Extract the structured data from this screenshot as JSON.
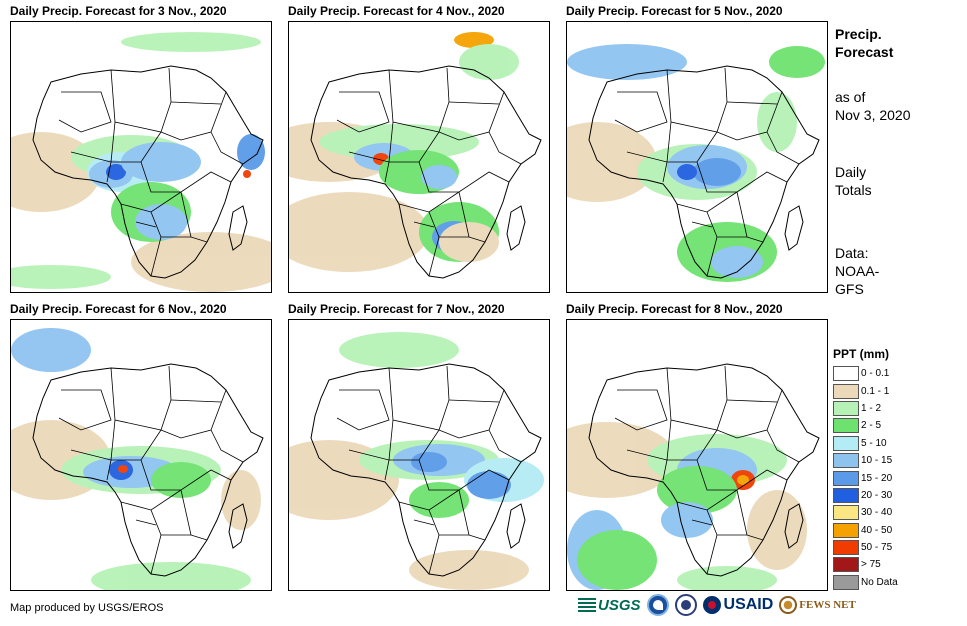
{
  "panels": [
    {
      "title": "Daily Precip. Forecast for 3 Nov., 2020"
    },
    {
      "title": "Daily Precip. Forecast for 4 Nov., 2020"
    },
    {
      "title": "Daily Precip. Forecast for 5 Nov., 2020"
    },
    {
      "title": "Daily Precip. Forecast for 6 Nov., 2020"
    },
    {
      "title": "Daily Precip. Forecast for 7 Nov., 2020"
    },
    {
      "title": "Daily Precip. Forecast for 8 Nov., 2020"
    }
  ],
  "side": {
    "title_line1": "Precip.",
    "title_line2": "Forecast",
    "asof_line1": "as of",
    "asof_line2": "Nov 3, 2020",
    "daily_line1": "Daily",
    "daily_line2": "Totals",
    "data_line1": "Data:",
    "data_line2": "NOAA-",
    "data_line3": "GFS"
  },
  "legend": {
    "title": "PPT (mm)",
    "items": [
      {
        "label": "0 - 0.1",
        "color": "#ffffff"
      },
      {
        "label": "0.1 - 1",
        "color": "#ecd9b9"
      },
      {
        "label": "1 - 2",
        "color": "#b6f2b6"
      },
      {
        "label": "2 - 5",
        "color": "#6ee26e"
      },
      {
        "label": "5 - 10",
        "color": "#b4ecf5"
      },
      {
        "label": "10 - 15",
        "color": "#8ec3f0"
      },
      {
        "label": "15 - 20",
        "color": "#5a9ae8"
      },
      {
        "label": "20 - 30",
        "color": "#1f5fe0"
      },
      {
        "label": "30 - 40",
        "color": "#fbe684"
      },
      {
        "label": "40 - 50",
        "color": "#f5a200"
      },
      {
        "label": "50 - 75",
        "color": "#f03c00"
      },
      {
        "label": "> 75",
        "color": "#a21818"
      },
      {
        "label": "No Data",
        "color": "#9a9a9a"
      }
    ]
  },
  "credit": "Map produced by USGS/EROS",
  "logos": {
    "usgs": "USGS",
    "usaid": "USAID",
    "fews": "FEWS NET"
  }
}
